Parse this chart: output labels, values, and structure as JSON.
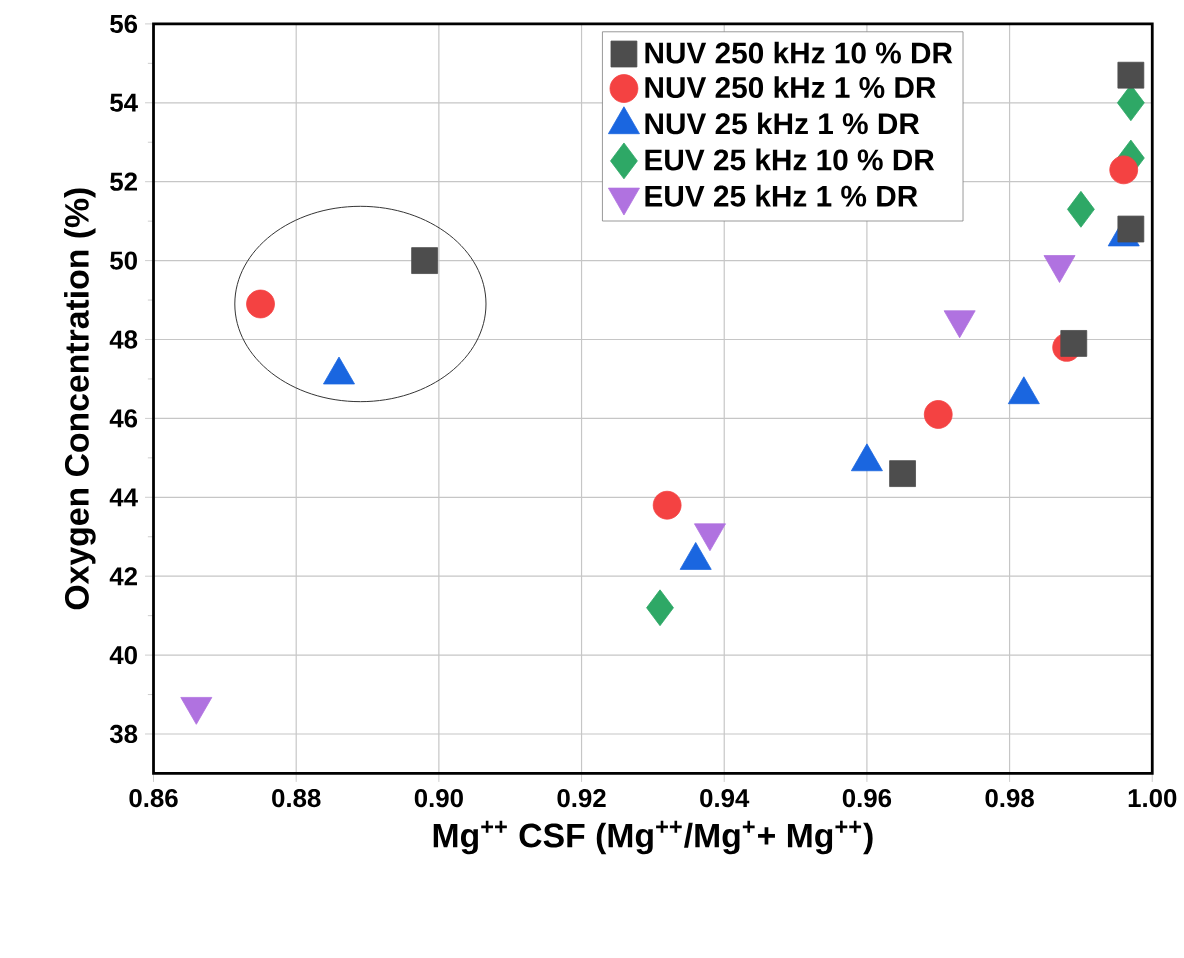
{
  "chart_data": {
    "type": "scatter",
    "xlabel": "Mg$^{++}$ CSF (Mg$^{++}$/Mg$^{+}$+ Mg$^{++}$)",
    "ylabel": "Oxygen Concentration (%)",
    "xlim": [
      0.86,
      1.0
    ],
    "xticks": [
      {
        "value": 0.86,
        "label": "0.86"
      },
      {
        "value": 0.88,
        "label": "0.88"
      },
      {
        "value": 0.9,
        "label": "0.90"
      },
      {
        "value": 0.92,
        "label": "0.92"
      },
      {
        "value": 0.94,
        "label": "0.94"
      },
      {
        "value": 0.96,
        "label": "0.96"
      },
      {
        "value": 0.98,
        "label": "0.98"
      },
      {
        "value": 1.0,
        "label": "1.00"
      }
    ],
    "ylim": [
      37,
      56
    ],
    "yticks": [
      38,
      40,
      42,
      44,
      46,
      48,
      50,
      52,
      54,
      56
    ],
    "grid": true,
    "legend": "top",
    "series": [
      {
        "name": "NUV 250 kHz 10 % DR",
        "color": "#4d4d4d",
        "marker": "square",
        "x": [
          0.898,
          0.965,
          0.989,
          0.997,
          0.997
        ],
        "values": [
          50.0,
          44.6,
          47.9,
          54.7,
          50.8
        ]
      },
      {
        "name": "NUV 250 kHz 1 % DR",
        "color": "#f44242",
        "marker": "circle",
        "x": [
          0.875,
          0.932,
          0.97,
          0.988,
          0.996
        ],
        "values": [
          48.9,
          43.8,
          46.1,
          47.8,
          52.3
        ]
      },
      {
        "name": "NUV 25 kHz 1 % DR",
        "color": "#1a66e0",
        "marker": "triangle",
        "x": [
          0.886,
          0.936,
          0.96,
          0.982,
          0.996
        ],
        "values": [
          47.1,
          42.4,
          44.9,
          46.6,
          50.6
        ]
      },
      {
        "name": "EUV 25 kHz 10 % DR",
        "color": "#2ea866",
        "marker": "diamond",
        "x": [
          0.931,
          0.99,
          0.997,
          0.997
        ],
        "values": [
          41.2,
          51.3,
          54.0,
          52.6
        ]
      },
      {
        "name": "EUV 25 kHz 1 % DR",
        "color": "#b072e0",
        "marker": "triangle-down",
        "x": [
          0.866,
          0.938,
          0.973,
          0.987
        ],
        "values": [
          38.7,
          43.1,
          48.5,
          49.9
        ]
      }
    ]
  }
}
